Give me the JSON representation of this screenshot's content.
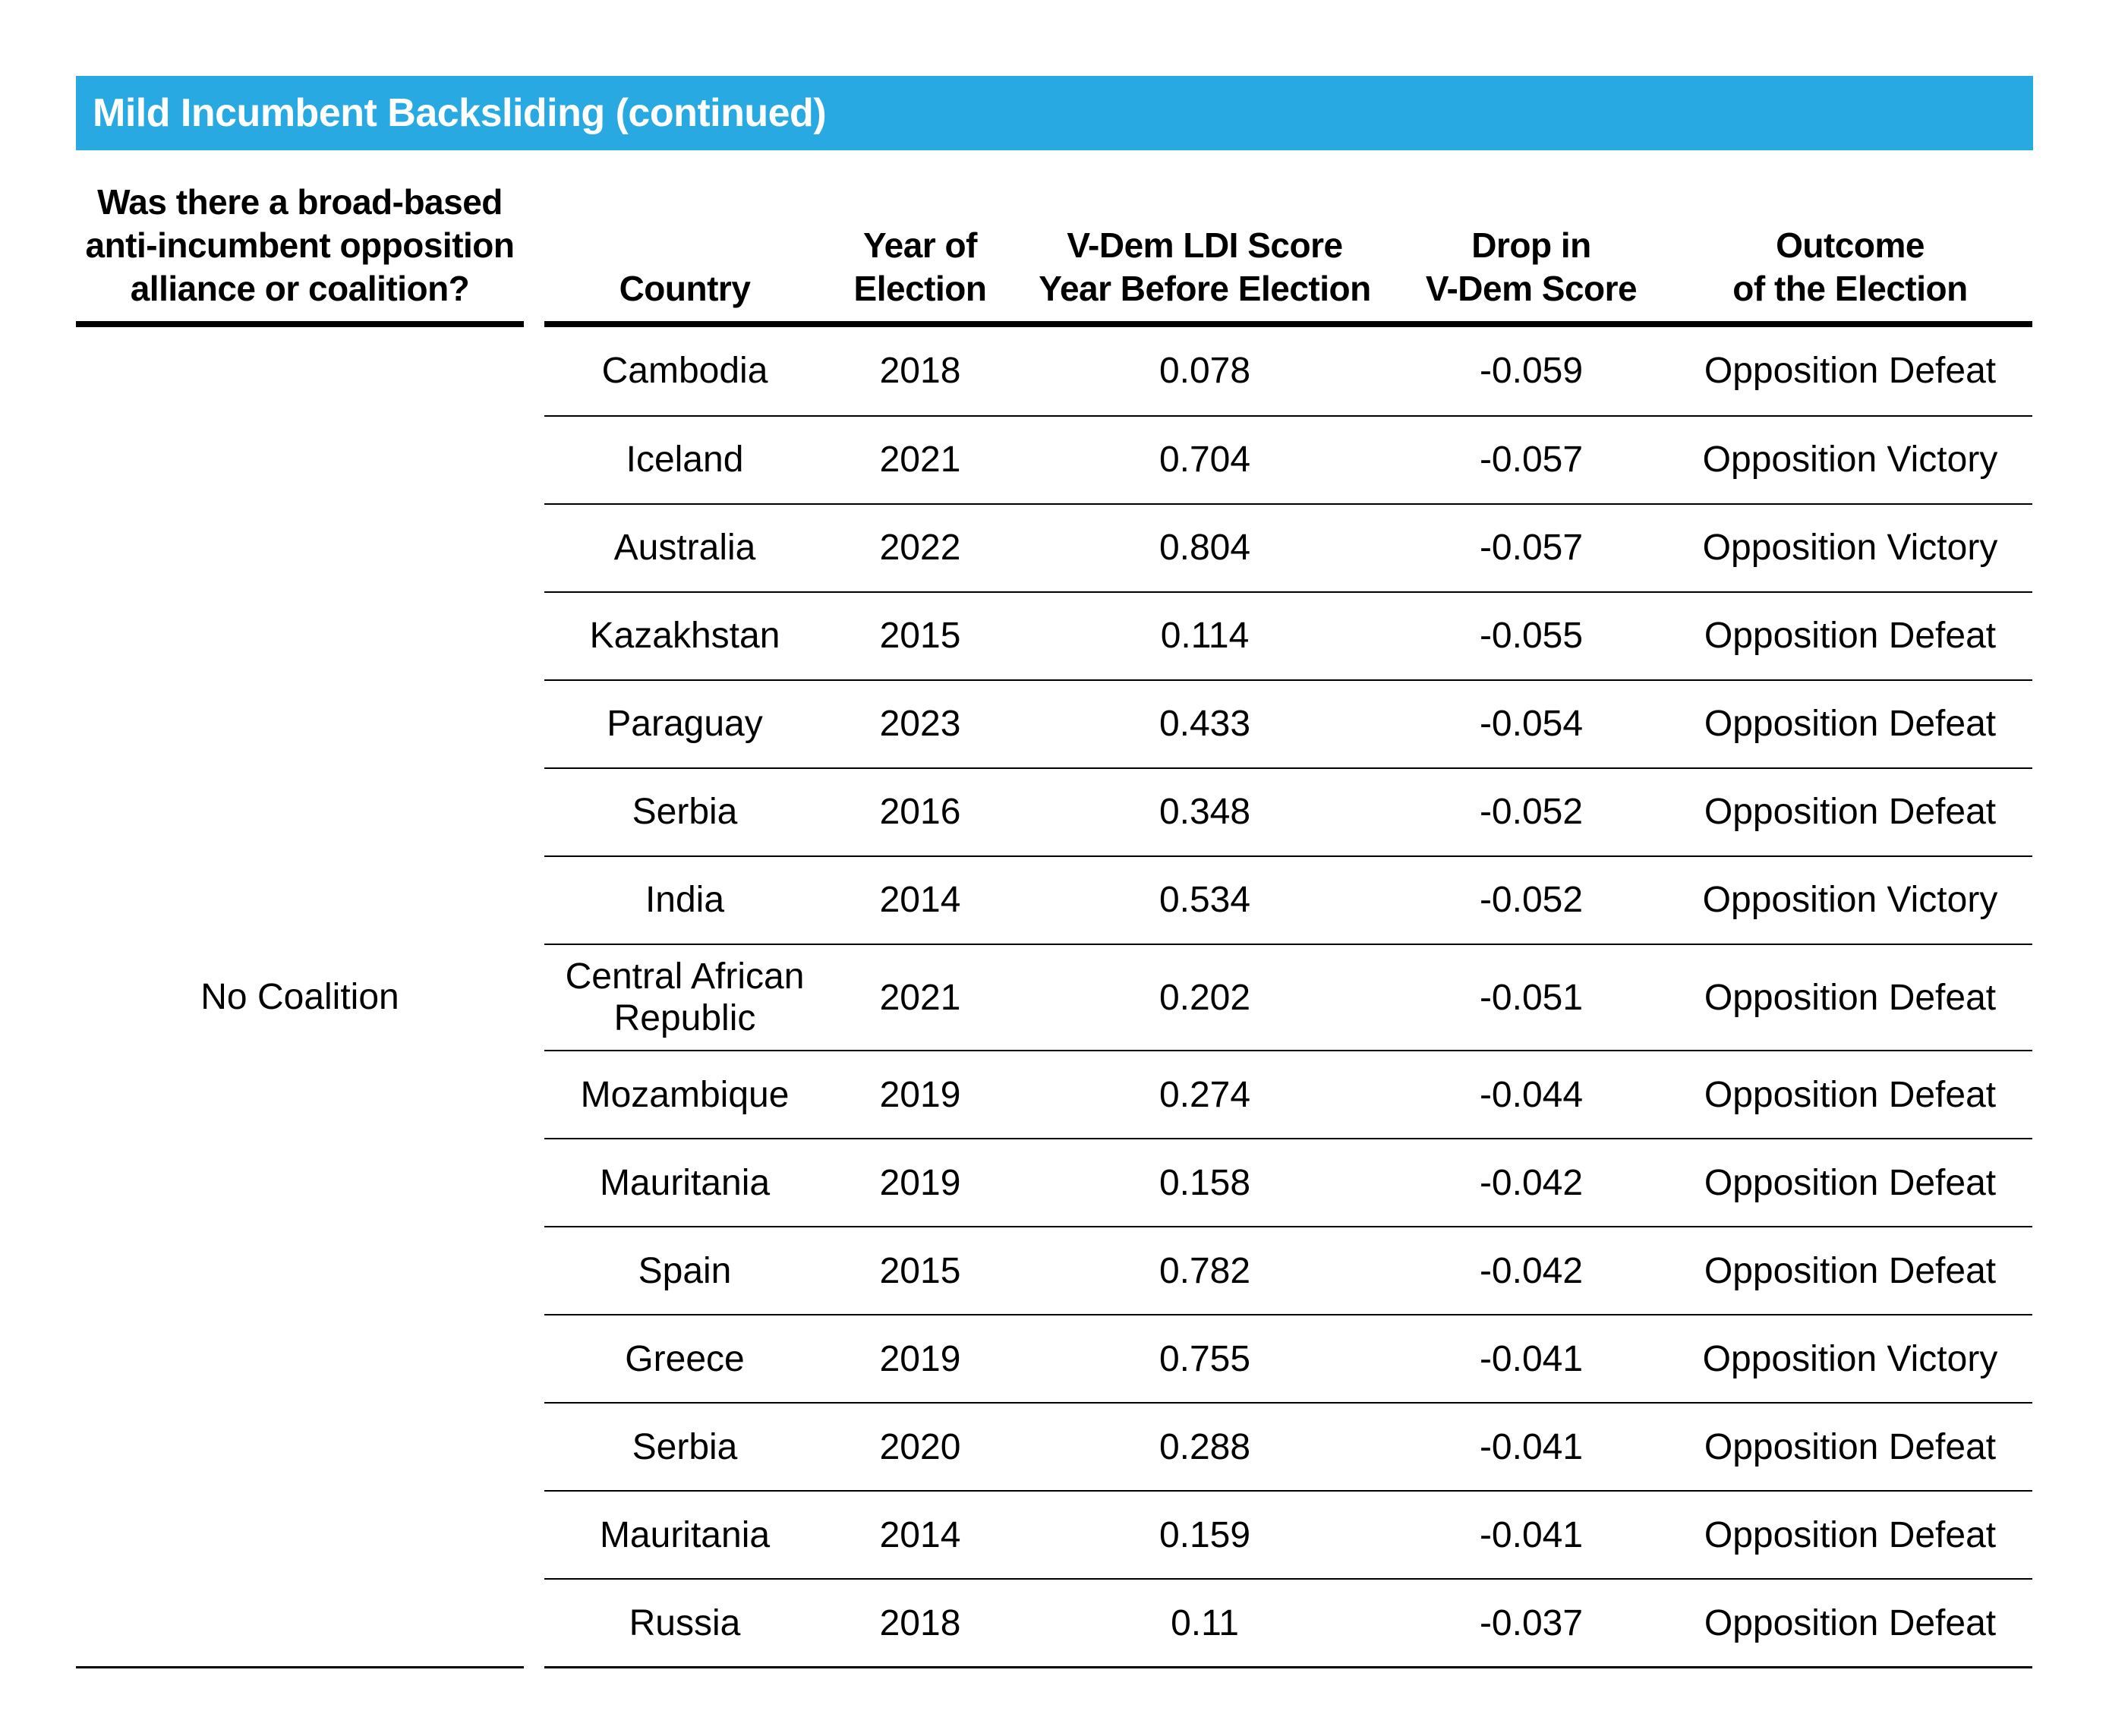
{
  "title_bar": {
    "label": "Mild Incumbent Backsliding (continued)",
    "bg_color": "#29A9E2",
    "text_color": "#FFFFFF"
  },
  "table": {
    "coalition_header": "Was there a broad-based\nanti-incumbent opposition\nalliance or coalition?",
    "coalition_value": "No Coalition",
    "columns": [
      {
        "id": "country",
        "label": "Country"
      },
      {
        "id": "year",
        "label": "Year of\nElection"
      },
      {
        "id": "ldi",
        "label": "V-Dem LDI Score\nYear Before Election"
      },
      {
        "id": "drop",
        "label": "Drop in\nV-Dem Score"
      },
      {
        "id": "outcome",
        "label": "Outcome\nof the Election"
      }
    ],
    "rows": [
      {
        "country": "Cambodia",
        "year": "2018",
        "ldi": "0.078",
        "drop": "-0.059",
        "outcome": "Opposition Defeat"
      },
      {
        "country": "Iceland",
        "year": "2021",
        "ldi": "0.704",
        "drop": "-0.057",
        "outcome": "Opposition Victory"
      },
      {
        "country": "Australia",
        "year": "2022",
        "ldi": "0.804",
        "drop": "-0.057",
        "outcome": "Opposition Victory"
      },
      {
        "country": "Kazakhstan",
        "year": "2015",
        "ldi": "0.114",
        "drop": "-0.055",
        "outcome": "Opposition Defeat"
      },
      {
        "country": "Paraguay",
        "year": "2023",
        "ldi": "0.433",
        "drop": "-0.054",
        "outcome": "Opposition Defeat"
      },
      {
        "country": "Serbia",
        "year": "2016",
        "ldi": "0.348",
        "drop": "-0.052",
        "outcome": "Opposition Defeat"
      },
      {
        "country": "India",
        "year": "2014",
        "ldi": "0.534",
        "drop": "-0.052",
        "outcome": "Opposition Victory"
      },
      {
        "country": "Central African Republic",
        "year": "2021",
        "ldi": "0.202",
        "drop": "-0.051",
        "outcome": "Opposition Defeat"
      },
      {
        "country": "Mozambique",
        "year": "2019",
        "ldi": "0.274",
        "drop": "-0.044",
        "outcome": "Opposition Defeat"
      },
      {
        "country": "Mauritania",
        "year": "2019",
        "ldi": "0.158",
        "drop": "-0.042",
        "outcome": "Opposition Defeat"
      },
      {
        "country": "Spain",
        "year": "2015",
        "ldi": "0.782",
        "drop": "-0.042",
        "outcome": "Opposition Defeat"
      },
      {
        "country": "Greece",
        "year": "2019",
        "ldi": "0.755",
        "drop": "-0.041",
        "outcome": "Opposition Victory"
      },
      {
        "country": "Serbia",
        "year": "2020",
        "ldi": "0.288",
        "drop": "-0.041",
        "outcome": "Opposition Defeat"
      },
      {
        "country": "Mauritania",
        "year": "2014",
        "ldi": "0.159",
        "drop": "-0.041",
        "outcome": "Opposition Defeat"
      },
      {
        "country": "Russia",
        "year": "2018",
        "ldi": "0.11",
        "drop": "-0.037",
        "outcome": "Opposition Defeat"
      }
    ]
  },
  "style": {
    "accent_blue": "#29A9E2",
    "line_color": "#000000"
  }
}
